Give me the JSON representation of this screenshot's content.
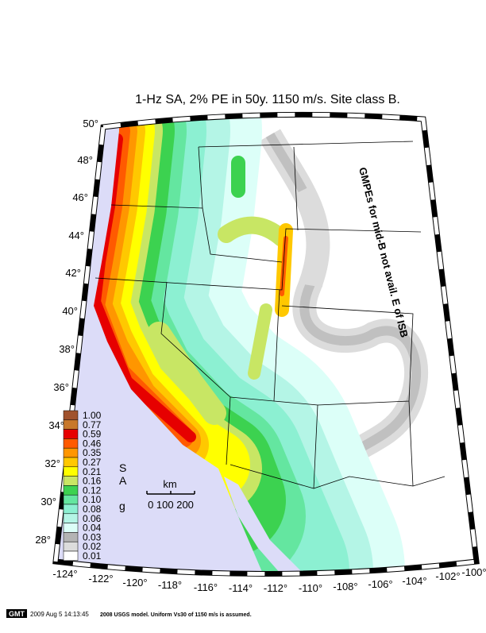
{
  "title": "1-Hz SA, 2% PE in 50y. 1150 m/s. Site class B.",
  "latitude_labels": [
    "50°",
    "48°",
    "46°",
    "44°",
    "42°",
    "40°",
    "38°",
    "36°",
    "34°",
    "32°",
    "30°",
    "28°"
  ],
  "longitude_labels": [
    "-124°",
    "-122°",
    "-120°",
    "-118°",
    "-116°",
    "-114°",
    "-112°",
    "-110°",
    "-108°",
    "-106°",
    "-104°",
    "-102°",
    "-100°"
  ],
  "legend": {
    "levels": [
      {
        "label": "1.00",
        "color": "#a0522d"
      },
      {
        "label": "0.77",
        "color": "#c8782a"
      },
      {
        "label": "0.59",
        "color": "#e60000"
      },
      {
        "label": "0.46",
        "color": "#ff5a00"
      },
      {
        "label": "0.35",
        "color": "#ff9600"
      },
      {
        "label": "0.27",
        "color": "#ffc800"
      },
      {
        "label": "0.21",
        "color": "#ffff00"
      },
      {
        "label": "0.16",
        "color": "#c8e664"
      },
      {
        "label": "0.12",
        "color": "#3cd250"
      },
      {
        "label": "0.10",
        "color": "#64e6a0"
      },
      {
        "label": "0.08",
        "color": "#8cf0d2"
      },
      {
        "label": "0.06",
        "color": "#b4f5e6"
      },
      {
        "label": "0.04",
        "color": "#dcfff8"
      },
      {
        "label": "0.03",
        "color": "#b4b4b4"
      },
      {
        "label": "0.02",
        "color": "#dcdcdc"
      },
      {
        "label": "0.01",
        "color": "#ffffff"
      }
    ],
    "unit_letters": [
      "S",
      "A",
      "g"
    ]
  },
  "scale_bar": {
    "unit": "km",
    "labels": "0 100 200"
  },
  "annotation": "GMPEs for mid-B not avail. E of ISB",
  "footer": {
    "logo": "GMT",
    "timestamp": "2009 Aug  5 14:13:45",
    "note": "2008 USGS model. Uniform Vs30 of 1150 m/s is assumed."
  }
}
